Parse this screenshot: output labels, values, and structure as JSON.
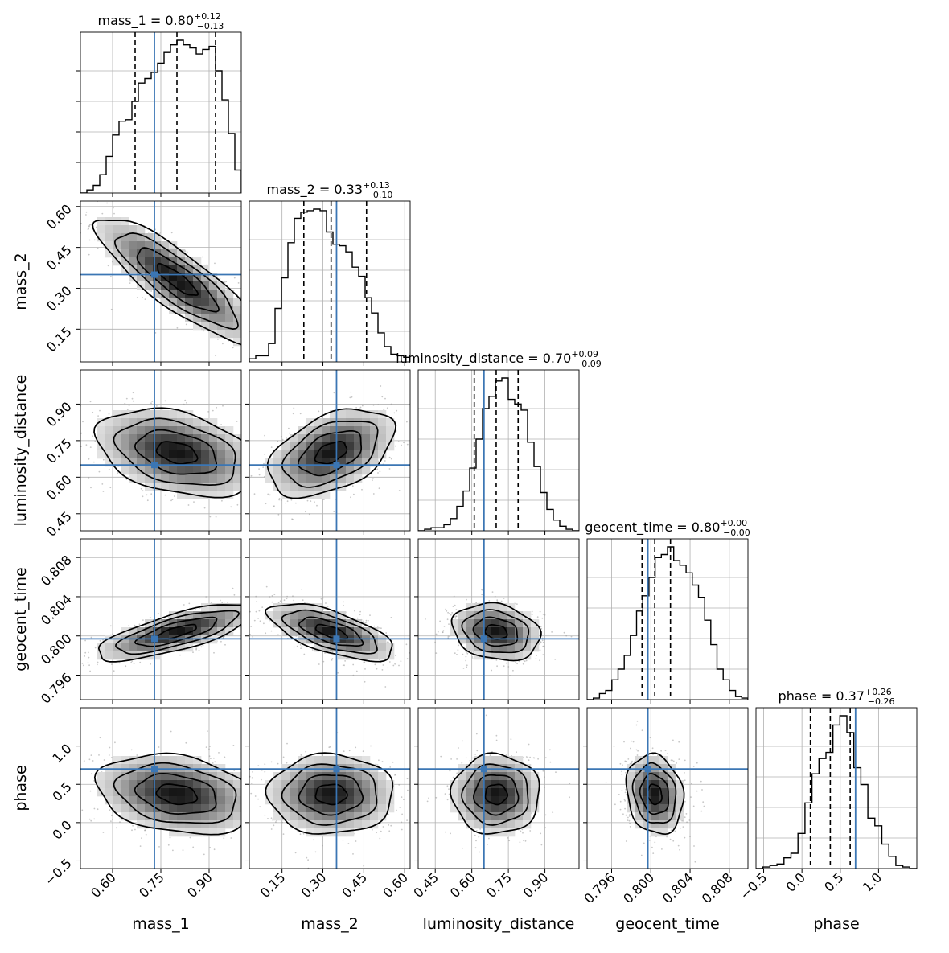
{
  "chart_data": {
    "type": "corner",
    "parameters": [
      "mass_1",
      "mass_2",
      "luminosity_distance",
      "geocent_time",
      "phase"
    ],
    "axis_labels": [
      "mass_1",
      "mass_2",
      "luminosity_distance",
      "geocent_time",
      "phase"
    ],
    "ranges": [
      [
        0.5,
        1.0
      ],
      [
        0.03,
        0.62
      ],
      [
        0.38,
        1.04
      ],
      [
        0.7935,
        0.8099
      ],
      [
        -0.6,
        1.5
      ]
    ],
    "ticks": [
      [
        0.6,
        0.75,
        0.9
      ],
      [
        0.15,
        0.3,
        0.45,
        0.6
      ],
      [
        0.45,
        0.6,
        0.75,
        0.9
      ],
      [
        0.796,
        0.8,
        0.804,
        0.808
      ],
      [
        -0.5,
        0.0,
        0.5,
        1.0
      ]
    ],
    "tick_labels": [
      [
        "0.60",
        "0.75",
        "0.90"
      ],
      [
        "0.15",
        "0.30",
        "0.45",
        "0.60"
      ],
      [
        "0.45",
        "0.60",
        "0.75",
        "0.90"
      ],
      [
        "0.796",
        "0.800",
        "0.804",
        "0.808"
      ],
      [
        "−0.5",
        "0.0",
        "0.5",
        "1.0"
      ]
    ],
    "y_tick_labels": [
      [],
      [
        "0.15",
        "0.30",
        "0.45",
        "0.60"
      ],
      [
        "0.45",
        "0.60",
        "0.75",
        "0.90"
      ],
      [
        "0.796",
        "0.800",
        "0.804",
        "0.808"
      ],
      [
        "−0.5",
        "0.0",
        "0.5",
        "1.0"
      ]
    ],
    "titles": [
      {
        "name": "mass_1",
        "prefix": "mass_1 = 0.80",
        "sup": "+0.12",
        "sub": "−0.13"
      },
      {
        "name": "mass_2",
        "prefix": "mass_2 = 0.33",
        "sup": "+0.13",
        "sub": "−0.10"
      },
      {
        "name": "luminosity_distance",
        "prefix": "luminosity_distance = 0.70",
        "sup": "+0.09",
        "sub": "−0.09"
      },
      {
        "name": "geocent_time",
        "prefix": "geocent_time = 0.80",
        "sup": "+0.00",
        "sub": "−0.00"
      },
      {
        "name": "phase",
        "prefix": "phase = 0.37",
        "sup": "+0.26",
        "sub": "−0.26"
      }
    ],
    "truths": [
      0.73,
      0.35,
      0.65,
      0.7997,
      0.7
    ],
    "quantiles": [
      [
        0.67,
        0.8,
        0.92
      ],
      [
        0.23,
        0.33,
        0.46
      ],
      [
        0.61,
        0.7,
        0.79
      ],
      [
        0.7991,
        0.8004,
        0.802
      ],
      [
        0.11,
        0.37,
        0.63
      ]
    ],
    "histograms": [
      [
        0.0,
        0.02,
        0.05,
        0.12,
        0.24,
        0.38,
        0.47,
        0.48,
        0.6,
        0.72,
        0.75,
        0.79,
        0.85,
        0.92,
        0.97,
        1.0,
        0.97,
        0.95,
        0.91,
        0.94,
        0.96,
        0.8,
        0.61,
        0.39,
        0.15
      ],
      [
        0.02,
        0.04,
        0.04,
        0.12,
        0.35,
        0.55,
        0.78,
        0.94,
        0.98,
        0.99,
        1.0,
        0.99,
        0.85,
        0.77,
        0.76,
        0.72,
        0.62,
        0.56,
        0.42,
        0.32,
        0.19,
        0.1,
        0.05,
        0.04,
        0.03
      ],
      [
        0.0,
        0.01,
        0.02,
        0.02,
        0.04,
        0.08,
        0.16,
        0.26,
        0.41,
        0.6,
        0.8,
        0.88,
        0.98,
        1.0,
        0.86,
        0.83,
        0.79,
        0.58,
        0.42,
        0.25,
        0.14,
        0.07,
        0.03,
        0.01,
        0.0
      ],
      [
        0.0,
        0.01,
        0.04,
        0.06,
        0.13,
        0.2,
        0.29,
        0.42,
        0.58,
        0.68,
        0.8,
        0.93,
        0.95,
        1.0,
        0.91,
        0.88,
        0.83,
        0.75,
        0.67,
        0.52,
        0.36,
        0.2,
        0.13,
        0.06,
        0.02,
        0.01
      ],
      [
        0.0,
        0.01,
        0.02,
        0.03,
        0.07,
        0.1,
        0.23,
        0.43,
        0.62,
        0.72,
        0.76,
        0.94,
        1.0,
        0.89,
        0.66,
        0.55,
        0.33,
        0.28,
        0.16,
        0.08,
        0.02,
        0.01,
        0.0
      ]
    ],
    "correlations": {
      "1-0": -0.85,
      "2-0": -0.35,
      "2-1": 0.45,
      "3-0": 0.75,
      "3-1": -0.65,
      "3-2": -0.2,
      "4-0": -0.25,
      "4-1": 0.0,
      "4-2": 0.0,
      "4-3": -0.15
    },
    "grid": true,
    "colors": {
      "truth": "#3b76b4",
      "hist": "#000000",
      "contour": "#000000",
      "scatter": "#999999",
      "grid": "#b0b0b0"
    }
  }
}
